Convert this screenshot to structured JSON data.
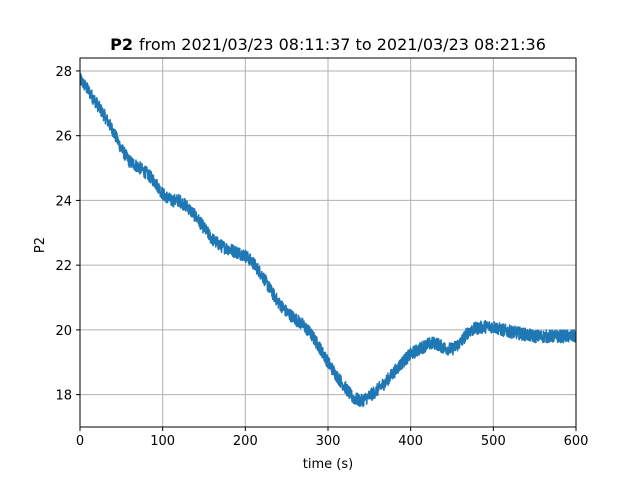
{
  "chart_data": {
    "type": "line",
    "title": {
      "series_name": "P2",
      "rest": "from 2021/03/23 08:11:37 to 2021/03/23 08:21:36"
    },
    "xlabel": "time (s)",
    "ylabel": "P2",
    "xlim": [
      0,
      600
    ],
    "ylim": [
      17,
      28.4
    ],
    "xticks": [
      0,
      100,
      200,
      300,
      400,
      500,
      600
    ],
    "yticks": [
      18,
      20,
      22,
      24,
      26,
      28
    ],
    "grid": true,
    "series": [
      {
        "color": "#1f77b4",
        "noise_amplitude": 0.2,
        "points": [
          [
            0,
            27.75
          ],
          [
            10,
            27.4
          ],
          [
            20,
            27.0
          ],
          [
            30,
            26.6
          ],
          [
            40,
            26.15
          ],
          [
            50,
            25.6
          ],
          [
            60,
            25.2
          ],
          [
            70,
            25.05
          ],
          [
            80,
            24.85
          ],
          [
            90,
            24.6
          ],
          [
            100,
            24.2
          ],
          [
            110,
            24.0
          ],
          [
            120,
            24.0
          ],
          [
            130,
            23.8
          ],
          [
            140,
            23.5
          ],
          [
            150,
            23.15
          ],
          [
            160,
            22.8
          ],
          [
            170,
            22.6
          ],
          [
            180,
            22.5
          ],
          [
            190,
            22.4
          ],
          [
            200,
            22.3
          ],
          [
            210,
            22.05
          ],
          [
            220,
            21.7
          ],
          [
            230,
            21.25
          ],
          [
            240,
            20.85
          ],
          [
            250,
            20.55
          ],
          [
            260,
            20.35
          ],
          [
            270,
            20.15
          ],
          [
            280,
            19.85
          ],
          [
            290,
            19.45
          ],
          [
            300,
            19.0
          ],
          [
            310,
            18.6
          ],
          [
            320,
            18.25
          ],
          [
            330,
            17.9
          ],
          [
            340,
            17.8
          ],
          [
            350,
            17.95
          ],
          [
            360,
            18.15
          ],
          [
            370,
            18.4
          ],
          [
            380,
            18.7
          ],
          [
            390,
            19.0
          ],
          [
            400,
            19.25
          ],
          [
            410,
            19.4
          ],
          [
            420,
            19.55
          ],
          [
            430,
            19.6
          ],
          [
            440,
            19.45
          ],
          [
            450,
            19.4
          ],
          [
            460,
            19.6
          ],
          [
            470,
            19.95
          ],
          [
            480,
            20.05
          ],
          [
            490,
            20.1
          ],
          [
            500,
            20.1
          ],
          [
            510,
            20.0
          ],
          [
            520,
            19.95
          ],
          [
            530,
            19.9
          ],
          [
            540,
            19.85
          ],
          [
            550,
            19.8
          ],
          [
            560,
            19.8
          ],
          [
            570,
            19.8
          ],
          [
            580,
            19.8
          ],
          [
            590,
            19.8
          ],
          [
            600,
            19.8
          ]
        ]
      }
    ]
  }
}
